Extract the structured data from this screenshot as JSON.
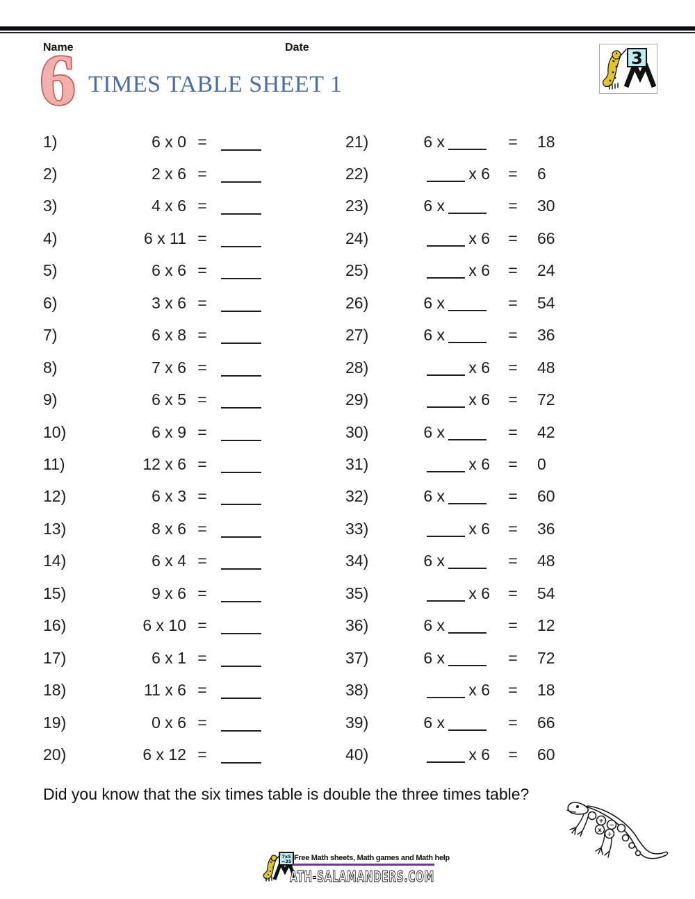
{
  "page": {
    "name_label": "Name",
    "date_label": "Date",
    "sheet_number": "6",
    "title": "TIMES TABLE SHEET 1",
    "fact": "Did you know that the six times table is double the three times table?"
  },
  "logo_top": {
    "badge_number": "3"
  },
  "symbols": {
    "equals": "="
  },
  "problems": {
    "left": [
      {
        "num": "1)",
        "expr": "6 x 0"
      },
      {
        "num": "2)",
        "expr": "2 x 6"
      },
      {
        "num": "3)",
        "expr": "4 x 6"
      },
      {
        "num": "4)",
        "expr": "6 x 11"
      },
      {
        "num": "5)",
        "expr": "6 x 6"
      },
      {
        "num": "6)",
        "expr": "3 x 6"
      },
      {
        "num": "7)",
        "expr": "6 x 8"
      },
      {
        "num": "8)",
        "expr": "7 x 6"
      },
      {
        "num": "9)",
        "expr": "6 x 5"
      },
      {
        "num": "10)",
        "expr": "6 x 9"
      },
      {
        "num": "11)",
        "expr": "12 x 6"
      },
      {
        "num": "12)",
        "expr": "6 x 3"
      },
      {
        "num": "13)",
        "expr": "8 x 6"
      },
      {
        "num": "14)",
        "expr": "6 x 4"
      },
      {
        "num": "15)",
        "expr": "9 x 6"
      },
      {
        "num": "16)",
        "expr": "6 x 10"
      },
      {
        "num": "17)",
        "expr": "6 x 1"
      },
      {
        "num": "18)",
        "expr": "11 x 6"
      },
      {
        "num": "19)",
        "expr": "0 x 6"
      },
      {
        "num": "20)",
        "expr": "6 x 12"
      }
    ],
    "right": [
      {
        "num": "21)",
        "blank": "after",
        "text": "6 x",
        "answer": "18"
      },
      {
        "num": "22)",
        "blank": "before",
        "text": "x 6",
        "answer": "6"
      },
      {
        "num": "23)",
        "blank": "after",
        "text": "6 x",
        "answer": "30"
      },
      {
        "num": "24)",
        "blank": "before",
        "text": "x 6",
        "answer": "66"
      },
      {
        "num": "25)",
        "blank": "before",
        "text": "x 6",
        "answer": "24"
      },
      {
        "num": "26)",
        "blank": "after",
        "text": "6 x",
        "answer": "54"
      },
      {
        "num": "27)",
        "blank": "after",
        "text": "6 x",
        "answer": "36"
      },
      {
        "num": "28)",
        "blank": "before",
        "text": "x 6",
        "answer": "48"
      },
      {
        "num": "29)",
        "blank": "before",
        "text": "x 6",
        "answer": "72"
      },
      {
        "num": "30)",
        "blank": "after",
        "text": "6 x",
        "answer": "42"
      },
      {
        "num": "31)",
        "blank": "before",
        "text": "x 6",
        "answer": "0"
      },
      {
        "num": "32)",
        "blank": "after",
        "text": "6 x",
        "answer": "60"
      },
      {
        "num": "33)",
        "blank": "before",
        "text": "x 6",
        "answer": "36"
      },
      {
        "num": "34)",
        "blank": "after",
        "text": "6 x",
        "answer": "48"
      },
      {
        "num": "35)",
        "blank": "before",
        "text": "x 6",
        "answer": "54"
      },
      {
        "num": "36)",
        "blank": "after",
        "text": "6 x",
        "answer": "12"
      },
      {
        "num": "37)",
        "blank": "after",
        "text": "6 x",
        "answer": "72"
      },
      {
        "num": "38)",
        "blank": "before",
        "text": "x 6",
        "answer": "18"
      },
      {
        "num": "39)",
        "blank": "after",
        "text": "6 x",
        "answer": "66"
      },
      {
        "num": "40)",
        "blank": "before",
        "text": "x 6",
        "answer": "60"
      }
    ]
  },
  "lizard_symbols": [
    "+",
    "−",
    "x",
    "÷"
  ],
  "footer": {
    "tagline": "Free Math sheets, Math games and Math help",
    "site_name": "ATH-SALAMANDERS.COM",
    "board_line1": "7x5",
    "board_line2": "=35"
  },
  "colors": {
    "ink": "#1d1d1d",
    "accent_red": "#c9514e",
    "accent_red_fill": "#f0b0ae",
    "title_blue": "#4a6da7",
    "purple_rule": "#7030a0",
    "salamander_yellow": "#e2c52e",
    "board_cyan": "#bfeef2"
  }
}
